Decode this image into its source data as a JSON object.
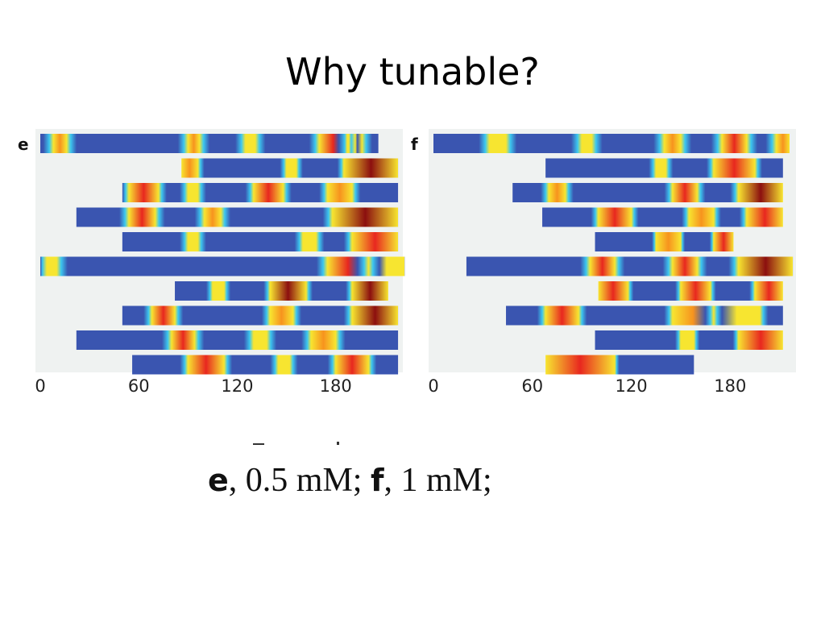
{
  "slide": {
    "title": "Why tunable?"
  },
  "caption": {
    "label_e": "e",
    "text_e": ", 0.5 mM; ",
    "label_f": "f",
    "text_f": ", 1 mM;"
  },
  "colors": {
    "blue": "#3a55b0",
    "cyan": "#3cc8f0",
    "yellow": "#f7e530",
    "orange": "#f7931e",
    "red": "#e8271f",
    "dark_red": "#8c0f0f",
    "background": "#eff2f1"
  },
  "chart_data": [
    {
      "type": "heatmap",
      "panel": "e",
      "x_ticks": [
        "0",
        "60",
        "120",
        "180"
      ],
      "xlim": [
        0,
        216
      ],
      "tracks": [
        {
          "start": 0,
          "end": 206,
          "hot": [
            [
              8,
              16,
              0.6
            ],
            [
              90,
              97,
              0.6
            ],
            [
              125,
              131,
              0.5
            ],
            [
              170,
              187,
              0.9
            ],
            [
              188,
              196,
              0.5
            ]
          ]
        },
        {
          "start": 86,
          "end": 218,
          "hot": [
            [
              86,
              96,
              0.6
            ],
            [
              150,
              156,
              0.5
            ],
            [
              185,
              218,
              1.0
            ]
          ]
        },
        {
          "start": 50,
          "end": 218,
          "hot": [
            [
              54,
              72,
              0.9
            ],
            [
              90,
              96,
              0.5
            ],
            [
              130,
              148,
              0.9
            ],
            [
              175,
              190,
              0.6
            ]
          ]
        },
        {
          "start": 22,
          "end": 218,
          "hot": [
            [
              54,
              70,
              0.9
            ],
            [
              100,
              110,
              0.6
            ],
            [
              178,
              218,
              1.0
            ]
          ]
        },
        {
          "start": 50,
          "end": 218,
          "hot": [
            [
              90,
              96,
              0.5
            ],
            [
              160,
              168,
              0.5
            ],
            [
              190,
              218,
              0.9
            ]
          ]
        },
        {
          "start": 0,
          "end": 222,
          "hot": [
            [
              4,
              10,
              0.4
            ],
            [
              175,
              200,
              0.85
            ],
            [
              200,
              222,
              0.55
            ]
          ]
        },
        {
          "start": 82,
          "end": 212,
          "hot": [
            [
              105,
              112,
              0.5
            ],
            [
              140,
              162,
              0.95
            ],
            [
              190,
              212,
              1.0
            ]
          ]
        },
        {
          "start": 50,
          "end": 218,
          "hot": [
            [
              68,
              82,
              0.9
            ],
            [
              140,
              154,
              0.7
            ],
            [
              190,
              218,
              1.0
            ]
          ]
        },
        {
          "start": 22,
          "end": 218,
          "hot": [
            [
              80,
              94,
              0.9
            ],
            [
              130,
              138,
              0.5
            ],
            [
              165,
              180,
              0.7
            ]
          ]
        },
        {
          "start": 56,
          "end": 218,
          "hot": [
            [
              90,
              112,
              0.85
            ],
            [
              145,
              152,
              0.5
            ],
            [
              180,
              200,
              0.9
            ]
          ]
        }
      ]
    },
    {
      "type": "heatmap",
      "panel": "f",
      "x_ticks": [
        "0",
        "60",
        "120",
        "180"
      ],
      "xlim": [
        0,
        216
      ],
      "tracks": [
        {
          "start": 0,
          "end": 216,
          "hot": [
            [
              34,
              44,
              0.5
            ],
            [
              90,
              96,
              0.5
            ],
            [
              140,
              150,
              0.6
            ],
            [
              175,
              190,
              0.75
            ],
            [
              208,
              216,
              0.6
            ]
          ]
        },
        {
          "start": 68,
          "end": 212,
          "hot": [
            [
              135,
              141,
              0.5
            ],
            [
              170,
              195,
              0.9
            ]
          ]
        },
        {
          "start": 48,
          "end": 212,
          "hot": [
            [
              70,
              80,
              0.6
            ],
            [
              145,
              160,
              0.8
            ],
            [
              185,
              212,
              0.95
            ]
          ]
        },
        {
          "start": 66,
          "end": 212,
          "hot": [
            [
              100,
              120,
              0.85
            ],
            [
              155,
              170,
              0.7
            ],
            [
              190,
              212,
              0.85
            ]
          ]
        },
        {
          "start": 98,
          "end": 182,
          "hot": [
            [
              135,
              150,
              0.6
            ],
            [
              170,
              182,
              0.85
            ]
          ]
        },
        {
          "start": 20,
          "end": 218,
          "hot": [
            [
              95,
              110,
              0.75
            ],
            [
              145,
              160,
              0.85
            ],
            [
              185,
              218,
              1.0
            ]
          ]
        },
        {
          "start": 100,
          "end": 212,
          "hot": [
            [
              100,
              118,
              0.85
            ],
            [
              150,
              168,
              0.85
            ],
            [
              195,
              212,
              0.9
            ]
          ]
        },
        {
          "start": 44,
          "end": 212,
          "hot": [
            [
              68,
              88,
              0.85
            ],
            [
              145,
              170,
              0.6
            ],
            [
              170,
              198,
              0.55
            ]
          ]
        },
        {
          "start": 98,
          "end": 212,
          "hot": [
            [
              150,
              158,
              0.5
            ],
            [
              185,
              212,
              0.85
            ]
          ]
        },
        {
          "start": 68,
          "end": 158,
          "hot": [
            [
              68,
              110,
              0.85
            ]
          ]
        }
      ]
    }
  ]
}
